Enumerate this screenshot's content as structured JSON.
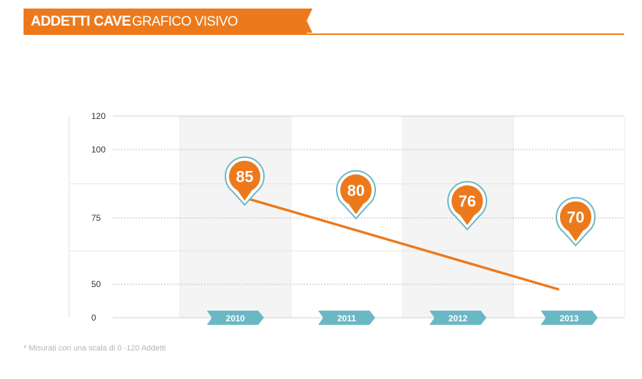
{
  "header": {
    "title": "ADDETTI CAVE",
    "subtitle": "GRAFICO VISIVO"
  },
  "footnote": "* Misurati con una scala di 0 -120 Addetti",
  "colors": {
    "accent": "#ec7a1d",
    "year_tag": "#6bb8c5",
    "pin_outline": "#6bb8c5",
    "band": "#f4f4f4",
    "grid": "#cfcfcf"
  },
  "chart_data": {
    "type": "line",
    "categories": [
      "2010",
      "2011",
      "2012",
      "2013"
    ],
    "values": [
      85,
      80,
      76,
      70
    ],
    "title": "",
    "xlabel": "",
    "ylabel": "",
    "y_ticks": [
      "0",
      "50",
      "75",
      "100",
      "120"
    ],
    "ylim": [
      0,
      120
    ],
    "grid": true
  }
}
